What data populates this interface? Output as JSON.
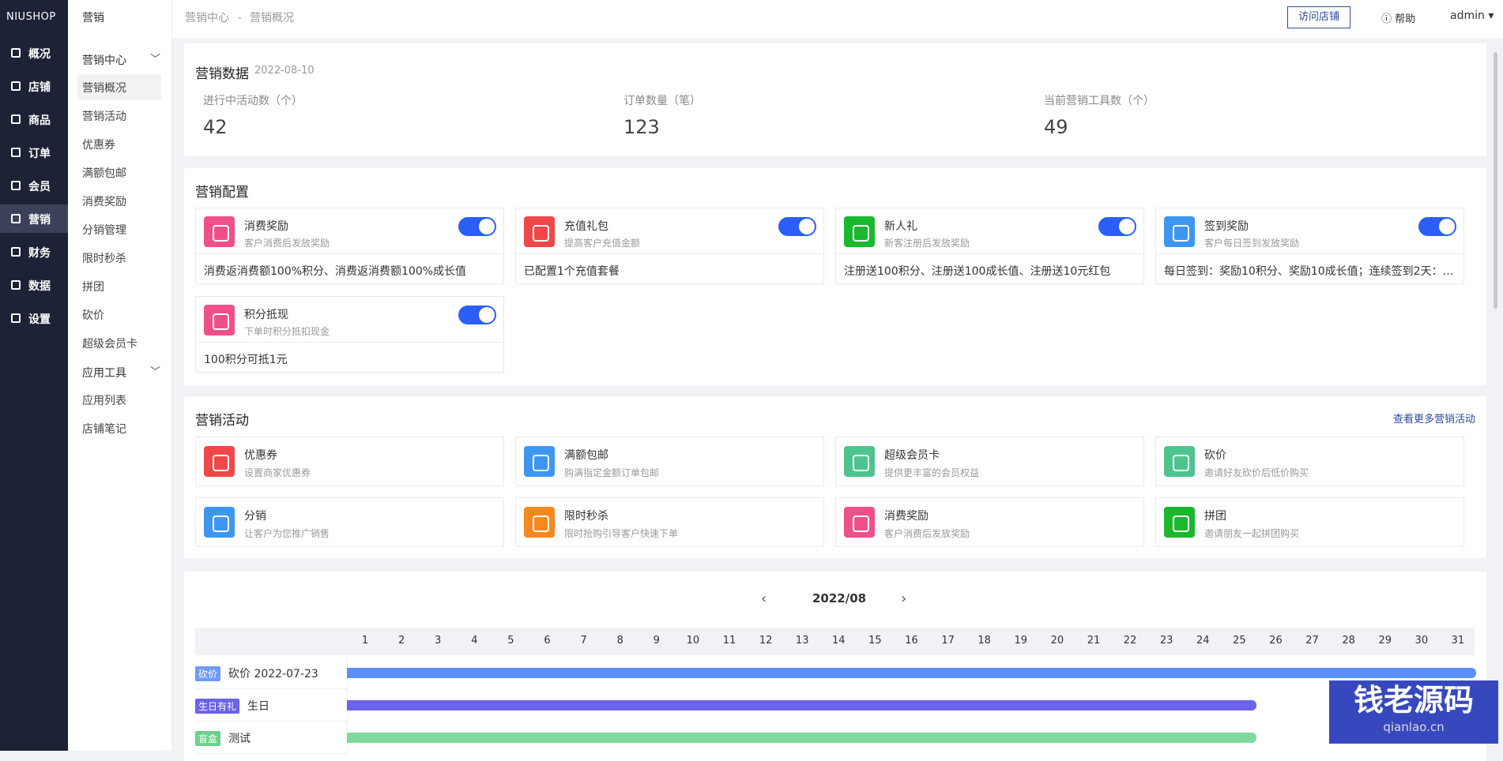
{
  "sidebar": {
    "logo": "NIUSHOP",
    "items": [
      "概况",
      "店铺",
      "商品",
      "订单",
      "会员",
      "营销",
      "财务",
      "数据",
      "设置"
    ],
    "active": 5
  },
  "subnav": {
    "title": "营销",
    "active_item": "营销概况",
    "groups": [
      {
        "label": "营销中心",
        "items": [
          "营销概况",
          "营销活动",
          "优惠券",
          "满额包邮",
          "消费奖励",
          "分销管理",
          "限时秒杀",
          "拼团",
          "砍价",
          "超级会员卡"
        ]
      },
      {
        "label": "应用工具",
        "items": [
          "应用列表",
          "店铺笔记"
        ]
      }
    ]
  },
  "header": {
    "breadcrumb": [
      "营销中心",
      "营销概况"
    ],
    "separator": "-",
    "visit": "访问店铺",
    "help": "帮助",
    "user": "admin"
  },
  "stats": {
    "title": "营销数据",
    "date": "2022-08-10",
    "items": [
      {
        "label": "进行中活动数（个）",
        "value": "42"
      },
      {
        "label": "订单数量（笔）",
        "value": "123"
      },
      {
        "label": "当前营销工具数（个）",
        "value": "49"
      }
    ]
  },
  "config": {
    "title": "营销配置",
    "items": [
      {
        "name": "消费奖励",
        "desc": "客户消费后发放奖励",
        "detail": "消费返消费额100%积分、消费返消费额100%成长值",
        "enabled": true,
        "color": "#f0508a"
      },
      {
        "name": "充值礼包",
        "desc": "提高客户充值金额",
        "detail": "已配置1个充值套餐",
        "enabled": true,
        "color": "#f04848"
      },
      {
        "name": "新人礼",
        "desc": "新客注册后发放奖励",
        "detail": "注册送100积分、注册送100成长值、注册送10元红包",
        "enabled": true,
        "color": "#19b82f"
      },
      {
        "name": "签到奖励",
        "desc": "客户每日签到发放奖励",
        "detail": "每日签到：奖励10积分、奖励10成长值；连续签到2天：…",
        "enabled": true,
        "color": "#3d97f2"
      },
      {
        "name": "积分抵现",
        "desc": "下单时积分抵扣现金",
        "detail": "100积分可抵1元",
        "enabled": true,
        "color": "#f0508a"
      }
    ]
  },
  "activities": {
    "title": "营销活动",
    "more": "查看更多营销活动",
    "items": [
      {
        "name": "优惠券",
        "desc": "设置商家优惠券",
        "color": "#f04848"
      },
      {
        "name": "满额包邮",
        "desc": "购满指定金额订单包邮",
        "color": "#3d97f2"
      },
      {
        "name": "超级会员卡",
        "desc": "提供更丰富的会员权益",
        "color": "#4cc48d"
      },
      {
        "name": "砍价",
        "desc": "邀请好友砍价后低价购买",
        "color": "#4cc48d"
      },
      {
        "name": "分销",
        "desc": "让客户为您推广销售",
        "color": "#3d97f2"
      },
      {
        "name": "限时秒杀",
        "desc": "限时抢购引导客户快速下单",
        "color": "#f7891e"
      },
      {
        "name": "消费奖励",
        "desc": "客户消费后发放奖励",
        "color": "#f0508a"
      },
      {
        "name": "拼团",
        "desc": "邀请朋友一起拼团购买",
        "color": "#19b82f"
      }
    ]
  },
  "calendar": {
    "month": "2022/08",
    "days": [
      1,
      2,
      3,
      4,
      5,
      6,
      7,
      8,
      9,
      10,
      11,
      12,
      13,
      14,
      15,
      16,
      17,
      18,
      19,
      20,
      21,
      22,
      23,
      24,
      25,
      26,
      27,
      28,
      29,
      30,
      31
    ],
    "rows": [
      {
        "tag": "砍价",
        "label": "砍价 2022-07-23",
        "tag_color": "#6e9bf5",
        "bar_color": "#5b8ff9"
      },
      {
        "tag": "生日有礼",
        "label": "生日",
        "tag_color": "#6b63e8",
        "bar_color": "#6b63e8"
      },
      {
        "tag": "盲盒",
        "label": "测试",
        "tag_color": "#6fd08e",
        "bar_color": "#7ed99a"
      }
    ]
  },
  "watermark": {
    "brand": "钱老源码",
    "url": "qianlao.cn"
  }
}
